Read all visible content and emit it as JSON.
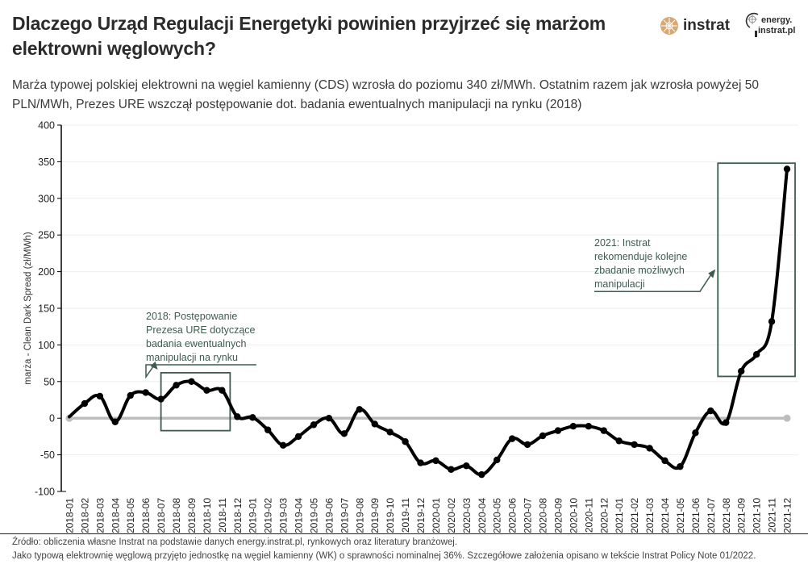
{
  "header": {
    "title": "Dlaczego Urząd Regulacji Energetyki powinien przyjrzeć się marżom elektrowni węglowych?",
    "subtitle": "Marża typowej polskiej elektrowni na węgiel kamienny (CDS) wzrosła do poziomu 340 zł/MWh. Ostatnim razem jak wzrosła powyżej 50 PLN/MWh, Prezes URE wszczął postępowanie dot. badania ewentualnych manipulacji na rynku (2018)",
    "logo_instrat": "instrat",
    "logo_energy_line1": "energy.",
    "logo_energy_line2": "instrat.pl"
  },
  "colors": {
    "line": "#000000",
    "zero_line": "#bdbdbd",
    "annotation": "#3d5c4e",
    "grid": "#eeeeee",
    "logo_accent": "#d9a872"
  },
  "chart_data": {
    "type": "line",
    "title": "",
    "xlabel": "",
    "ylabel": "marża - Clean Dark Spread (zł/MWh)",
    "ylim": [
      -100,
      400
    ],
    "yticks": [
      -100,
      -50,
      0,
      50,
      100,
      150,
      200,
      250,
      300,
      350,
      400
    ],
    "grid": true,
    "x": [
      "2018-01",
      "2018-02",
      "2018-03",
      "2018-04",
      "2018-05",
      "2018-06",
      "2018-07",
      "2018-08",
      "2018-09",
      "2018-10",
      "2018-11",
      "2018-12",
      "2019-01",
      "2019-02",
      "2019-03",
      "2019-04",
      "2019-05",
      "2019-06",
      "2019-07",
      "2019-08",
      "2019-09",
      "2019-10",
      "2019-11",
      "2019-12",
      "2020-01",
      "2020-02",
      "2020-03",
      "2020-04",
      "2020-05",
      "2020-06",
      "2020-07",
      "2020-08",
      "2020-09",
      "2020-10",
      "2020-11",
      "2020-12",
      "2021-01",
      "2021-02",
      "2021-03",
      "2021-04",
      "2021-05",
      "2021-06",
      "2021-07",
      "2021-08",
      "2021-09",
      "2021-10",
      "2021-11",
      "2021-12"
    ],
    "series": [
      {
        "name": "CDS",
        "values": [
          2,
          20,
          30,
          -5,
          31,
          35,
          26,
          45,
          50,
          38,
          38,
          2,
          1,
          -16,
          -37,
          -25,
          -9,
          0,
          -21,
          12,
          -8,
          -19,
          -32,
          -61,
          -58,
          -70,
          -65,
          -77,
          -57,
          -28,
          -36,
          -24,
          -17,
          -11,
          -11,
          -17,
          -31,
          -36,
          -41,
          -58,
          -66,
          -20,
          10,
          -6,
          64,
          87,
          132,
          340
        ]
      }
    ],
    "annotations": [
      {
        "text_lines": [
          "2018: Postępowanie",
          "Prezesa URE dotyczące",
          "badania ewentualnych",
          "manipulacji na rynku"
        ],
        "box_x": [
          "2018-07",
          "2018-11"
        ],
        "box_y": [
          -17,
          62
        ]
      },
      {
        "text_lines": [
          "2021: Instrat",
          "rekomenduje kolejne",
          "zbadanie możliwych",
          "manipulacji"
        ],
        "box_x": [
          "2021-08",
          "2021-12"
        ],
        "box_y": [
          57,
          348
        ]
      }
    ]
  },
  "footer": {
    "source": "Źródło: obliczenia własne Instrat na podstawie danych energy.instrat.pl, rynkowych oraz literatury branżowej.",
    "note": "Jako typową elektrownię węglową przyjęto jednostkę na węgiel kamienny (WK) o sprawności nominalnej 36%. Szczegółowe założenia opisano w tekście Instrat Policy Note 01/2022."
  }
}
